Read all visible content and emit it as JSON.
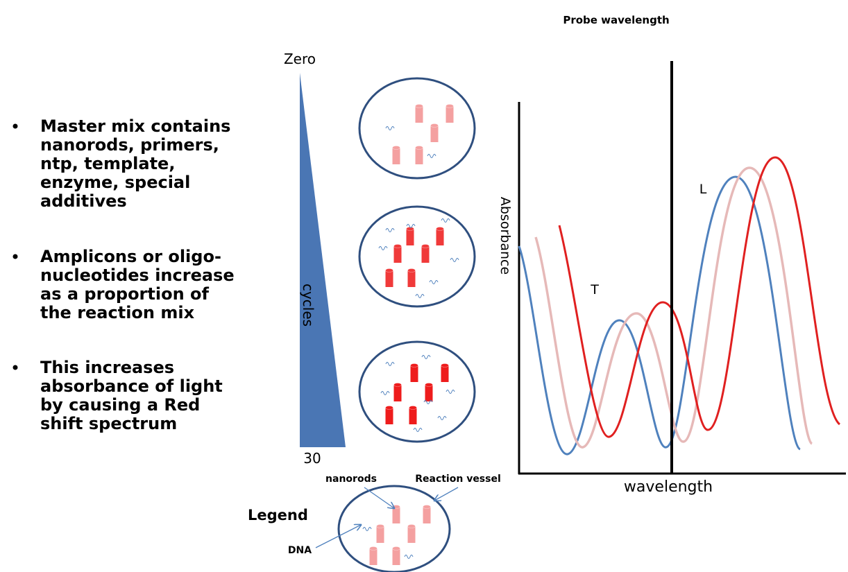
{
  "bullets": [
    {
      "lines": [
        "Master mix contains",
        "nanorods, primers,",
        "ntp, template,",
        "enzyme, special",
        "additives"
      ]
    },
    {
      "lines": [
        "Amplicons or oligo-",
        "nucleotides increase",
        "as a proportion of",
        "the reaction mix"
      ]
    },
    {
      "lines": [
        "This increases",
        "absorbance of light",
        "by causing a Red",
        "shift spectrum"
      ]
    }
  ],
  "cycles": {
    "top": "Zero",
    "label": "cycles",
    "bottom": "30"
  },
  "spectrum": {
    "title": "Probe wavelength",
    "y_label": "Absorbance",
    "x_label": "wavelength",
    "peak_t": "T",
    "peak_l": "L"
  },
  "legend": {
    "title": "Legend",
    "nanorods": "nanorods",
    "vessel": "Reaction vessel",
    "dna": "DNA"
  }
}
